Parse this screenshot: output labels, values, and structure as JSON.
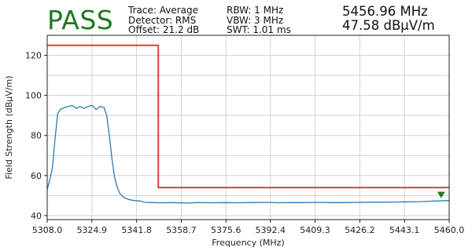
{
  "header": {
    "status": "PASS",
    "trace": "Trace: Average",
    "detector": "Detector: RMS",
    "offset": "Offset: 21.2 dB",
    "rbw": "RBW: 1 MHz",
    "vbw": "VBW: 3 MHz",
    "swt": "SWT: 1.01 ms",
    "marker_freq": "5456.96 MHz",
    "marker_level": "47.58 dBµV/m"
  },
  "colors": {
    "pass": "#1f7a1f",
    "trace": "#2a7ab8",
    "limit": "#e0403a",
    "marker": "#1a7a1a",
    "grid": "#d2d2d2"
  },
  "chart_data": {
    "type": "line",
    "xlabel": "Frequency (MHz)",
    "ylabel": "Field Strength (dBµV/m)",
    "xlim": [
      5308.0,
      5460.0
    ],
    "ylim": [
      38,
      130
    ],
    "xticks": [
      5308.0,
      5324.9,
      5341.8,
      5358.7,
      5375.6,
      5392.4,
      5409.3,
      5426.2,
      5443.1,
      5460.0
    ],
    "xtick_labels": [
      "5308.0",
      "5324.9",
      "5341.8",
      "5358.7",
      "5375.6",
      "5392.4",
      "5409.3",
      "5426.2",
      "5443.1",
      "5460.0"
    ],
    "yticks": [
      40,
      60,
      80,
      100,
      120
    ],
    "yminor": [
      50,
      70,
      90,
      110
    ],
    "grid": true,
    "limit_line": {
      "x": [
        5308.0,
        5350.0,
        5350.0,
        5460.0
      ],
      "y": [
        125,
        125,
        54,
        54
      ]
    },
    "marker": {
      "x": 5456.96,
      "y": 47.58
    },
    "series": [
      {
        "x": [
          5308.0,
          5309.0,
          5310.0,
          5311.0,
          5312.0,
          5313.0,
          5314.5,
          5316.0,
          5317.5,
          5319.0,
          5320.5,
          5322.0,
          5323.5,
          5325.0,
          5326.5,
          5328.0,
          5329.5,
          5330.5,
          5331.5,
          5332.5,
          5333.5,
          5334.5,
          5335.5,
          5337.0,
          5339.0,
          5341.0,
          5343.0,
          5345.0,
          5348.0,
          5351.0,
          5355.0,
          5360.0,
          5365.0,
          5370.0,
          5375.0,
          5380.0,
          5385.0,
          5390.0,
          5395.0,
          5400.0,
          5405.0,
          5410.0,
          5415.0,
          5420.0,
          5425.0,
          5430.0,
          5435.0,
          5440.0,
          5445.0,
          5450.0,
          5455.0,
          5460.0
        ],
        "y": [
          53.0,
          58.0,
          64.0,
          79.0,
          91.0,
          93.0,
          94.0,
          94.5,
          95.0,
          93.5,
          94.5,
          93.5,
          94.5,
          95.0,
          93.0,
          94.5,
          94.0,
          90.0,
          80.0,
          68.0,
          59.0,
          54.0,
          51.0,
          49.0,
          48.0,
          47.5,
          47.3,
          46.6,
          46.5,
          46.4,
          46.5,
          46.3,
          46.5,
          46.4,
          46.5,
          46.4,
          46.5,
          46.6,
          46.4,
          46.5,
          46.5,
          46.6,
          46.5,
          46.5,
          46.6,
          46.7,
          46.7,
          46.8,
          46.9,
          47.0,
          47.3,
          47.5
        ]
      }
    ]
  }
}
